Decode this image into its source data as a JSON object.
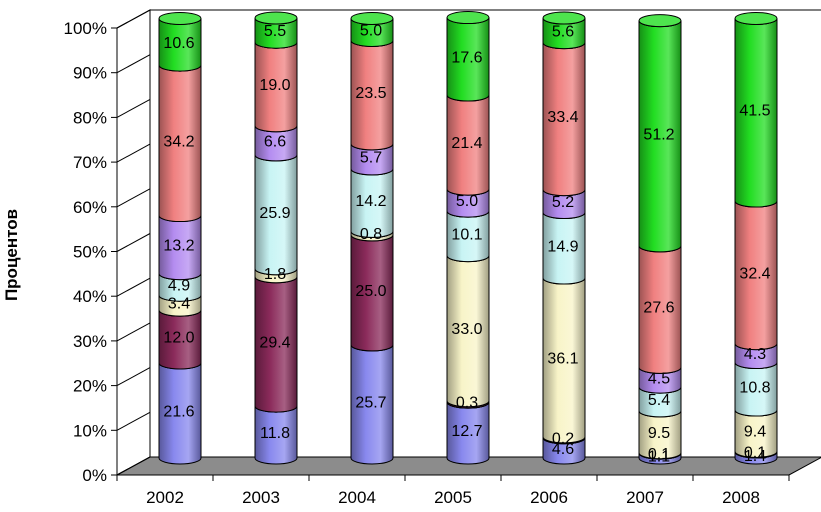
{
  "chart_data": {
    "type": "bar",
    "stacked": true,
    "percent": true,
    "style": "3d-cylinder",
    "title": "",
    "xlabel": "",
    "ylabel": "Процентов",
    "ylim": [
      0,
      100
    ],
    "yticks": [
      "0%",
      "10%",
      "20%",
      "30%",
      "40%",
      "50%",
      "60%",
      "70%",
      "80%",
      "90%",
      "100%"
    ],
    "categories": [
      "2002",
      "2003",
      "2004",
      "2005",
      "2006",
      "2007",
      "2008"
    ],
    "series": [
      {
        "color": "#8888ee",
        "values": [
          21.6,
          11.8,
          25.7,
          12.7,
          4.6,
          1.1,
          1.4
        ],
        "labels": [
          "21.6",
          "11.8",
          "25.7",
          "12.7",
          "4.6",
          "1.1",
          "1.4"
        ]
      },
      {
        "color": "#8a2a5a",
        "values": [
          12.0,
          29.4,
          25.0,
          0.3,
          0.2,
          0.1,
          0.1
        ],
        "labels": [
          "12.0",
          "29.4",
          "25.0",
          "0.3",
          "0.2",
          "0.1",
          "0.1"
        ]
      },
      {
        "color": "#f8f4c8",
        "values": [
          3.4,
          1.8,
          0.8,
          33.0,
          36.1,
          9.5,
          9.4
        ],
        "labels": [
          "3.4",
          "1.8",
          "0.8",
          "33.0",
          "36.1",
          "9.5",
          "9.4"
        ]
      },
      {
        "color": "#c8f4f4",
        "values": [
          4.9,
          25.9,
          14.2,
          10.1,
          14.9,
          5.4,
          10.8
        ],
        "labels": [
          "4.9",
          "25.9",
          "14.2",
          "10.1",
          "14.9",
          "5.4",
          "10.8"
        ]
      },
      {
        "color": "#b48cf0",
        "values": [
          13.2,
          6.6,
          5.7,
          5.0,
          5.2,
          4.5,
          4.3
        ],
        "labels": [
          "13.2",
          "6.6",
          "5.7",
          "5.0",
          "5.2",
          "4.5",
          "4.3"
        ]
      },
      {
        "color": "#f08080",
        "values": [
          34.2,
          19.0,
          23.5,
          21.4,
          33.4,
          27.6,
          32.4
        ],
        "labels": [
          "34.2",
          "19.0",
          "23.5",
          "21.4",
          "33.4",
          "27.6",
          "32.4"
        ]
      },
      {
        "color": "#22dd22",
        "values": [
          10.6,
          5.5,
          5.0,
          17.6,
          5.6,
          51.2,
          41.5
        ],
        "labels": [
          "10.6",
          "5.5",
          "5.0",
          "17.6",
          "5.6",
          "51.2",
          "41.5"
        ]
      }
    ],
    "grid": false,
    "legend": "none",
    "colors": {
      "wall": "#ffffff",
      "floor": "#8c8c8c",
      "axis": "#000000"
    }
  }
}
